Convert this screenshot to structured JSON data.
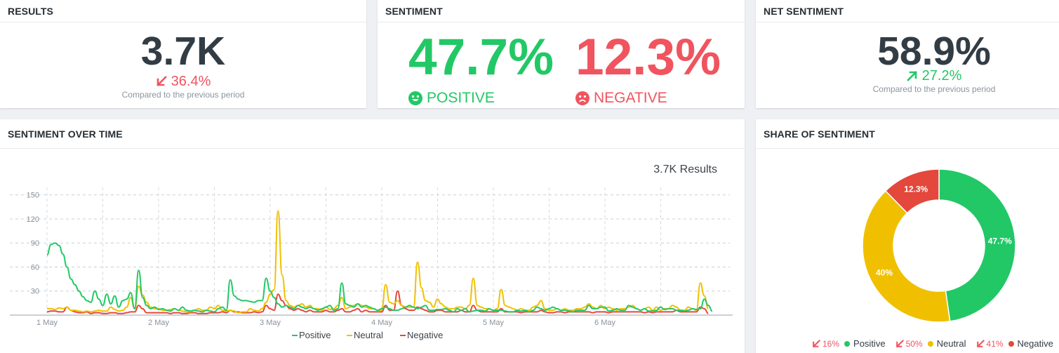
{
  "results": {
    "title": "RESULTS",
    "value": "3.7K",
    "change": "36.4%",
    "change_direction": "down",
    "compare_text": "Compared to the previous period"
  },
  "sentiment": {
    "title": "SENTIMENT",
    "positive_value": "47.7%",
    "positive_label": "POSITIVE",
    "negative_value": "12.3%",
    "negative_label": "NEGATIVE"
  },
  "net_sentiment": {
    "title": "NET SENTIMENT",
    "value": "58.9%",
    "change": "27.2%",
    "change_direction": "up",
    "compare_text": "Compared to the previous period"
  },
  "sentiment_over_time": {
    "title": "SENTIMENT OVER TIME",
    "results_label": "3.7K Results"
  },
  "share_of_sentiment": {
    "title": "SHARE OF SENTIMENT",
    "legend": [
      {
        "change": "16%",
        "label": "Positive",
        "color": "#22c866"
      },
      {
        "change": "50%",
        "label": "Neutral",
        "color": "#f0c000"
      },
      {
        "change": "41%",
        "label": "Negative",
        "color": "#e4473b"
      }
    ]
  },
  "colors": {
    "positive": "#22c866",
    "neutral": "#f0c000",
    "negative": "#e4473b",
    "down": "#f0545f",
    "text_dark": "#323c45"
  },
  "chart_data": [
    {
      "type": "line",
      "title": "3.7K Results",
      "x_tick_labels": [
        "1 May",
        "2 May",
        "3 May",
        "4 May",
        "5 May",
        "6 May"
      ],
      "y_ticks": [
        30,
        60,
        90,
        120,
        150
      ],
      "ylim": [
        0,
        155
      ],
      "grid": true,
      "legend_position": "bottom",
      "series": [
        {
          "name": "Positive",
          "color": "#22c866",
          "values": [
            75,
            88,
            90,
            87,
            76,
            60,
            45,
            38,
            30,
            23,
            18,
            16,
            30,
            20,
            12,
            26,
            14,
            24,
            10,
            18,
            20,
            28,
            8,
            56,
            22,
            12,
            8,
            10,
            7,
            8,
            6,
            5,
            8,
            6,
            10,
            6,
            5,
            6,
            5,
            4,
            6,
            5,
            4,
            8,
            10,
            6,
            44,
            24,
            20,
            18,
            18,
            17,
            16,
            18,
            18,
            46,
            30,
            22,
            14,
            10,
            12,
            10,
            8,
            12,
            10,
            8,
            10,
            8,
            6,
            8,
            10,
            12,
            6,
            8,
            40,
            14,
            12,
            10,
            14,
            10,
            12,
            10,
            8,
            6,
            8,
            10,
            8,
            6,
            6,
            8,
            10,
            12,
            10,
            8,
            10,
            12,
            6,
            6,
            7,
            7,
            8,
            6,
            4,
            8,
            6,
            8,
            4,
            5,
            6,
            6,
            5,
            8,
            6,
            6,
            6,
            5,
            4,
            4,
            6,
            5,
            6,
            4,
            6,
            10,
            8,
            6,
            8,
            10,
            8,
            6,
            6,
            5,
            4,
            6,
            6,
            6,
            12,
            8,
            8,
            10,
            10,
            5,
            6,
            8,
            6,
            6,
            12,
            10,
            8,
            6,
            8,
            5,
            5,
            6,
            10,
            7,
            8,
            8,
            6,
            6,
            5,
            6,
            8,
            7,
            8,
            20,
            12,
            5
          ]
        },
        {
          "name": "Neutral",
          "color": "#f0c000",
          "values": [
            8,
            8,
            7,
            9,
            8,
            10,
            6,
            6,
            5,
            4,
            5,
            4,
            5,
            6,
            5,
            5,
            10,
            7,
            5,
            6,
            10,
            22,
            8,
            36,
            25,
            16,
            10,
            8,
            8,
            6,
            6,
            7,
            8,
            6,
            5,
            4,
            4,
            6,
            8,
            6,
            6,
            10,
            8,
            12,
            6,
            5,
            6,
            5,
            3,
            4,
            4,
            8,
            6,
            5,
            8,
            16,
            26,
            32,
            130,
            50,
            18,
            12,
            10,
            12,
            14,
            10,
            12,
            8,
            8,
            6,
            10,
            7,
            8,
            12,
            22,
            8,
            10,
            12,
            14,
            12,
            10,
            8,
            8,
            6,
            6,
            38,
            16,
            14,
            18,
            12,
            10,
            10,
            10,
            66,
            34,
            18,
            16,
            10,
            20,
            14,
            10,
            8,
            8,
            10,
            10,
            8,
            12,
            46,
            12,
            10,
            8,
            8,
            6,
            8,
            32,
            12,
            10,
            8,
            6,
            8,
            6,
            6,
            10,
            12,
            18,
            8,
            6,
            6,
            8,
            6,
            8,
            6,
            6,
            8,
            8,
            10,
            14,
            10,
            8,
            12,
            8,
            10,
            8,
            6,
            8,
            8,
            10,
            12,
            8,
            6,
            8,
            10,
            6,
            10,
            6,
            8,
            8,
            12,
            10,
            6,
            6,
            10,
            8,
            6,
            40,
            24,
            8
          ]
        },
        {
          "name": "Negative",
          "color": "#e4473b",
          "values": [
            4,
            5,
            5,
            4,
            4,
            10,
            6,
            4,
            3,
            3,
            4,
            2,
            3,
            3,
            2,
            2,
            3,
            3,
            2,
            2,
            3,
            4,
            4,
            12,
            8,
            3,
            3,
            3,
            3,
            3,
            3,
            2,
            3,
            3,
            2,
            2,
            3,
            3,
            2,
            2,
            2,
            3,
            3,
            3,
            4,
            3,
            6,
            4,
            4,
            3,
            3,
            3,
            4,
            3,
            4,
            12,
            8,
            6,
            26,
            18,
            12,
            8,
            6,
            8,
            6,
            4,
            6,
            4,
            4,
            4,
            6,
            4,
            4,
            6,
            8,
            4,
            4,
            6,
            8,
            4,
            6,
            4,
            4,
            4,
            4,
            12,
            6,
            6,
            30,
            12,
            8,
            6,
            6,
            10,
            8,
            6,
            4,
            4,
            6,
            6,
            4,
            4,
            4,
            4,
            6,
            4,
            4,
            12,
            6,
            4,
            4,
            4,
            4,
            4,
            8,
            4,
            4,
            4,
            4,
            3,
            4,
            4,
            4,
            4,
            6,
            4,
            3,
            3,
            4,
            4,
            3,
            4,
            4,
            4,
            4,
            4,
            4,
            3,
            4,
            4,
            4,
            3,
            4,
            4,
            4,
            4,
            4,
            4,
            4,
            4,
            3,
            4,
            3,
            4,
            4,
            4,
            4,
            4,
            6,
            4,
            4,
            4,
            4,
            4,
            10,
            8,
            2
          ]
        }
      ]
    },
    {
      "type": "pie",
      "title": "SHARE OF SENTIMENT",
      "donut": true,
      "slices": [
        {
          "label": "Positive",
          "value": 47.7,
          "display": "47.7%",
          "color": "#22c866"
        },
        {
          "label": "Neutral",
          "value": 40,
          "display": "40%",
          "color": "#f0c000"
        },
        {
          "label": "Negative",
          "value": 12.3,
          "display": "12.3%",
          "color": "#e4473b"
        }
      ]
    }
  ]
}
